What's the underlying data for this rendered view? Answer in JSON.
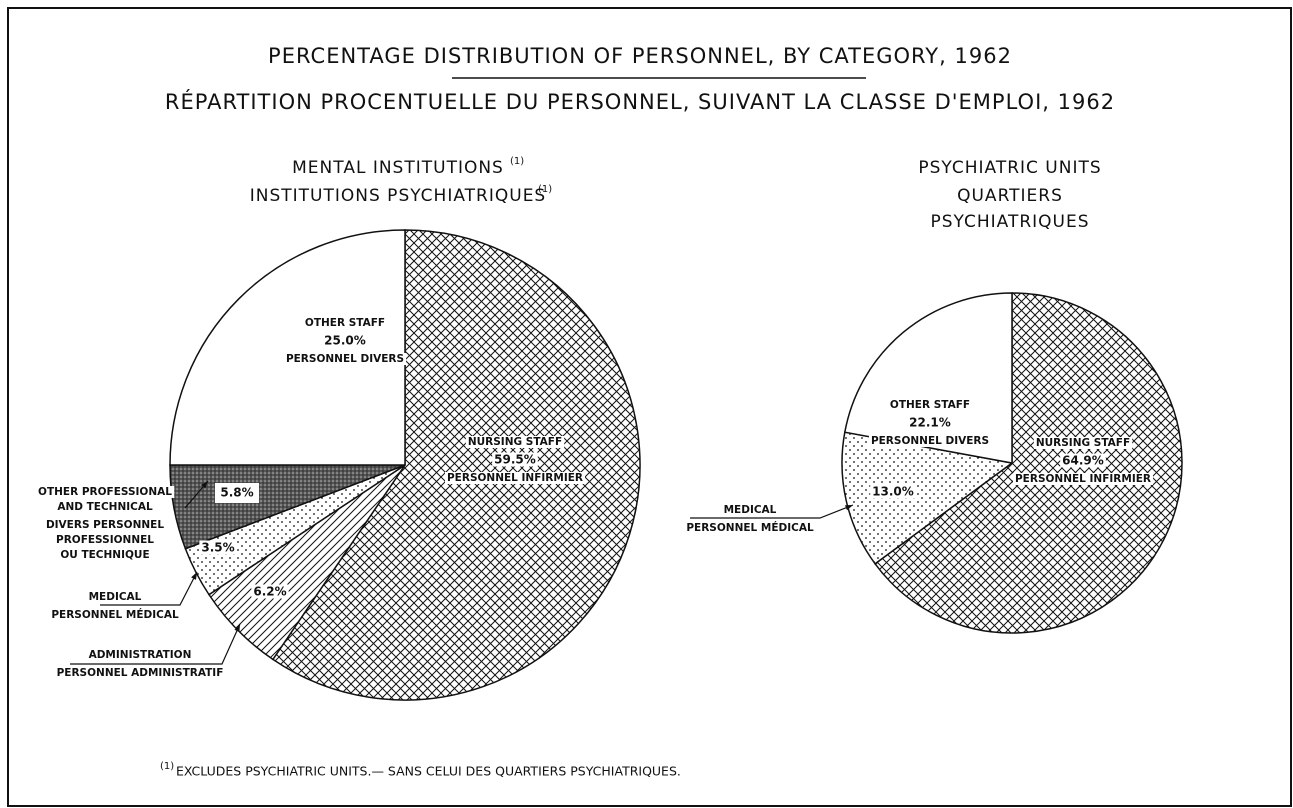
{
  "header": {
    "title": "PERCENTAGE DISTRIBUTION OF PERSONNEL, BY CATEGORY, 1962",
    "title_fr": "RÉPARTITION PROCENTUELLE DU PERSONNEL, SUIVANT LA CLASSE D'EMPLOI, 1962"
  },
  "chart_data": [
    {
      "type": "pie",
      "title": [
        "MENTAL INSTITUTIONS"
      ],
      "title_fr": [
        "INSTITUTIONS PSYCHIATRIQUES"
      ],
      "title_ref": "(1)",
      "categories": [
        [
          "NURSING STAFF"
        ],
        [
          "ADMINISTRATION"
        ],
        [
          "MEDICAL"
        ],
        [
          "OTHER PROFESSIONAL",
          "AND TECHNICAL"
        ],
        [
          "OTHER STAFF"
        ]
      ],
      "categories_fr": [
        [
          "PERSONNEL INFIRMIER"
        ],
        [
          "PERSONNEL ADMINISTRATIF"
        ],
        [
          "PERSONNEL MÉDICAL"
        ],
        [
          "DIVERS PERSONNEL",
          "PROFESSIONNEL",
          "OU TECHNIQUE"
        ],
        [
          "PERSONNEL DIVERS"
        ]
      ],
      "values": [
        59.5,
        6.2,
        3.5,
        5.8,
        25.0
      ],
      "value_labels": [
        "59.5%",
        "6.2%",
        "3.5%",
        "5.8%",
        "25.0%"
      ],
      "patterns": [
        "crosshatch",
        "diagonal",
        "dots",
        "dark-stipple",
        "blank"
      ]
    },
    {
      "type": "pie",
      "title": [
        "PSYCHIATRIC UNITS"
      ],
      "title_fr": [
        "QUARTIERS",
        "PSYCHIATRIQUES"
      ],
      "categories": [
        [
          "NURSING STAFF"
        ],
        [
          "MEDICAL"
        ],
        [
          "OTHER STAFF"
        ]
      ],
      "categories_fr": [
        [
          "PERSONNEL INFIRMIER"
        ],
        [
          "PERSONNEL MÉDICAL"
        ],
        [
          "PERSONNEL DIVERS"
        ]
      ],
      "values": [
        64.9,
        13.0,
        22.1
      ],
      "value_labels": [
        "64.9%",
        "13.0%",
        "22.1%"
      ],
      "patterns": [
        "crosshatch",
        "dots",
        "blank"
      ]
    }
  ],
  "footnote": {
    "ref": "(1)",
    "text": "EXCLUDES PSYCHIATRIC UNITS.— SANS CELUI DES QUARTIERS PSYCHIATRIQUES."
  }
}
